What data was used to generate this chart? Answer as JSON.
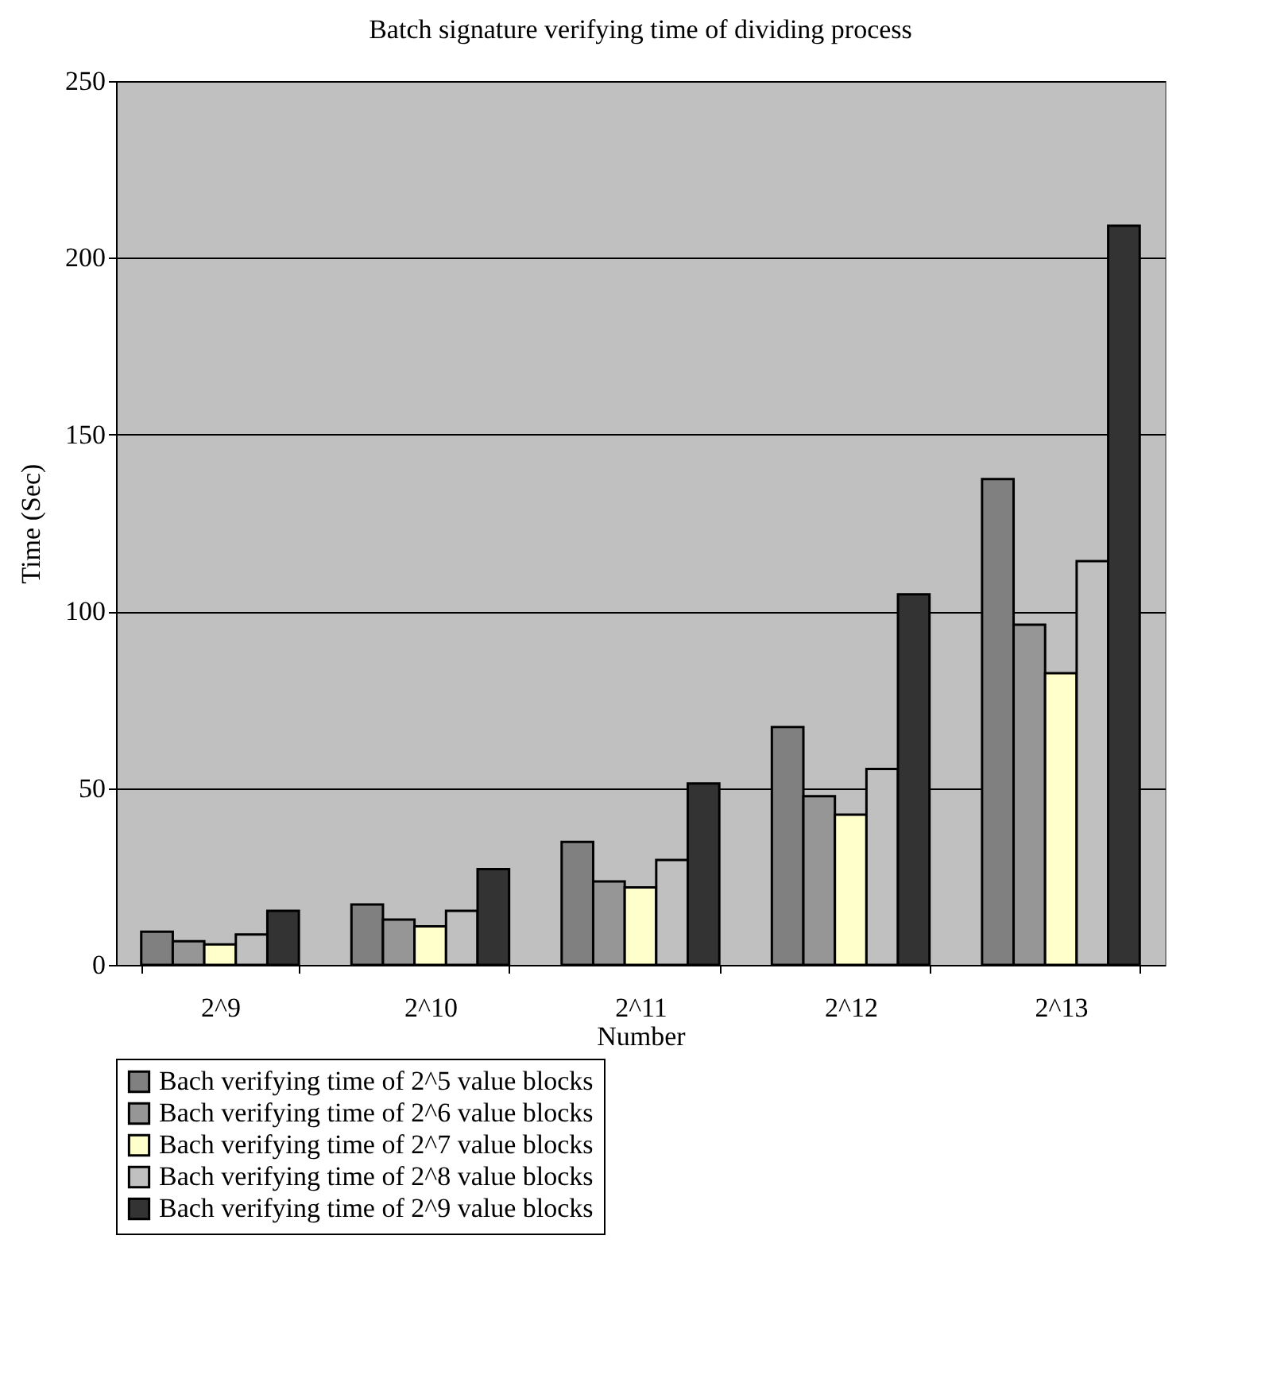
{
  "chart_data": {
    "type": "bar",
    "title": "Batch signature verifying time of dividing process",
    "xlabel": "Number",
    "ylabel": "Time (Sec)",
    "categories": [
      "2^9",
      "2^10",
      "2^11",
      "2^12",
      "2^13"
    ],
    "series": [
      {
        "name": "Bach verifying time of 2^5 value blocks",
        "color": "#808080",
        "values": [
          9.4,
          17.1,
          34.8,
          67.3,
          137.4
        ]
      },
      {
        "name": "Bach verifying time of 2^6 value blocks",
        "color": "#969696",
        "values": [
          6.7,
          12.8,
          23.6,
          47.7,
          96.2
        ]
      },
      {
        "name": "Bach verifying time of 2^7 value blocks",
        "color": "#ffffcc",
        "values": [
          5.8,
          10.9,
          21.9,
          42.5,
          82.5
        ]
      },
      {
        "name": "Bach verifying time of 2^8 value blocks",
        "color": "#c0c0c0",
        "values": [
          8.6,
          15.3,
          29.7,
          55.4,
          114.2
        ]
      },
      {
        "name": "Bach verifying time of 2^9 value blocks",
        "color": "#333333",
        "values": [
          15.3,
          27.1,
          51.3,
          104.8,
          209.1
        ]
      }
    ],
    "ylim": [
      0,
      250
    ],
    "yticks": [
      0,
      50,
      100,
      150,
      200,
      250
    ],
    "grid": "y",
    "legend": "bottom"
  }
}
